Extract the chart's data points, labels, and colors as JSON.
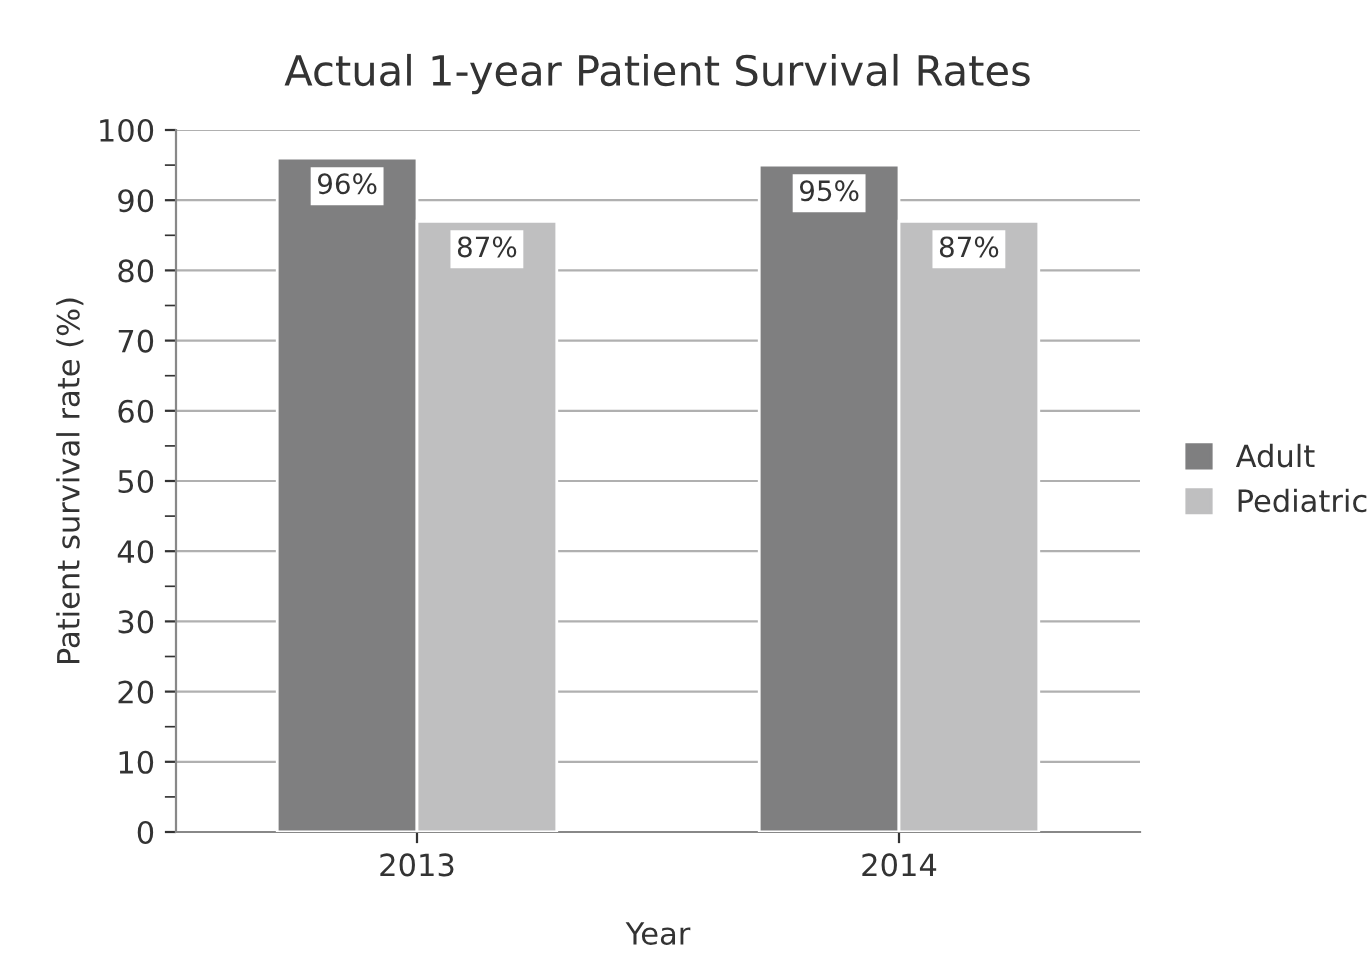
{
  "chart_data": {
    "type": "bar",
    "title": "Actual 1-year Patient Survival Rates",
    "xlabel": "Year",
    "ylabel": "Patient survival rate (%)",
    "categories": [
      "2013",
      "2014"
    ],
    "series": [
      {
        "name": "Adult",
        "color": "#7f7f80",
        "values": [
          96,
          95
        ],
        "value_labels": [
          "96%",
          "95%"
        ]
      },
      {
        "name": "Pediatric",
        "color": "#bfbfc0",
        "values": [
          87,
          87
        ],
        "value_labels": [
          "87%",
          "87%"
        ]
      }
    ],
    "ylim": [
      0,
      100
    ],
    "yticks": [
      0,
      10,
      20,
      30,
      40,
      50,
      60,
      70,
      80,
      90,
      100
    ],
    "grid": "y",
    "legend": "right"
  }
}
